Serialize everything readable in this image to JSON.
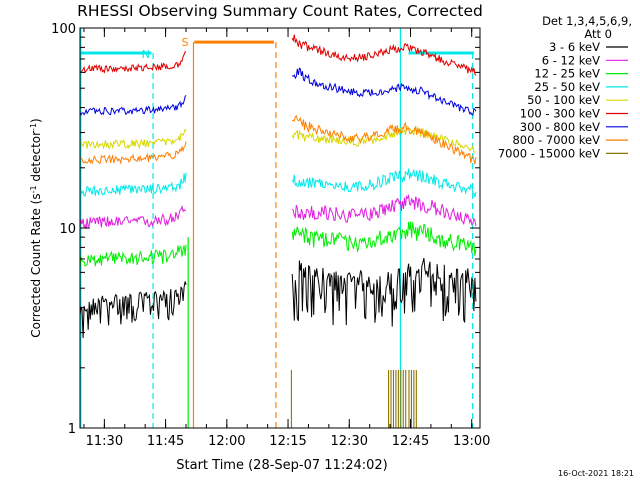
{
  "chart_data": {
    "type": "line",
    "title": "RHESSI Observing Summary Count Rates, Corrected",
    "xlabel": "Start Time (28-Sep-07 11:24:02)",
    "ylabel": "Corrected Count Rate (s⁻¹ detector⁻¹)",
    "ylabel_parts": {
      "pre": "Corrected Count Rate (s",
      "sup1": "-1",
      "mid": " detector",
      "sup2": "-1",
      "post": ")"
    },
    "x_axis_unit": "minutes after 11:24:02",
    "xlim": [
      0,
      98
    ],
    "ylim": [
      1,
      100
    ],
    "yscale": "log",
    "x_ticks": [
      {
        "value": 5.97,
        "label": "11:30"
      },
      {
        "value": 20.97,
        "label": "11:45"
      },
      {
        "value": 35.97,
        "label": "12:00"
      },
      {
        "value": 50.97,
        "label": "12:15"
      },
      {
        "value": 65.97,
        "label": "12:30"
      },
      {
        "value": 80.97,
        "label": "12:45"
      },
      {
        "value": 95.97,
        "label": "13:00"
      }
    ],
    "y_ticks": [
      {
        "value": 1,
        "label": "1"
      },
      {
        "value": 10,
        "label": "10"
      },
      {
        "value": 100,
        "label": "100"
      }
    ],
    "legend": {
      "placement": "right",
      "header1": "Det 1,3,4,5,6,9,",
      "header2": "Att 0"
    },
    "series": [
      {
        "name": "3 - 6 keV",
        "color": "#000000",
        "x": [
          0,
          4,
          8,
          12,
          16,
          20,
          24,
          26,
          52,
          56,
          60,
          64,
          68,
          72,
          76,
          80,
          84,
          88,
          92,
          97
        ],
        "y": [
          3.5,
          4.2,
          4.3,
          4.3,
          4.4,
          4.5,
          4.7,
          5.0,
          5.4,
          5.6,
          5.4,
          5.2,
          5.3,
          5.2,
          5.1,
          5.5,
          5.8,
          5.6,
          5.4,
          5.2
        ],
        "lo": [
          2.6,
          3.2,
          3.2,
          3.3,
          3.3,
          3.4,
          3.5,
          3.6,
          3.3,
          3.4,
          3.3,
          3.2,
          3.3,
          3.2,
          3.1,
          3.4,
          3.5,
          3.4,
          3.3,
          3.0
        ],
        "hi": [
          4.0,
          4.6,
          4.7,
          4.7,
          4.8,
          4.9,
          5.0,
          5.5,
          7.2,
          6.5,
          6.4,
          6.0,
          6.2,
          6.0,
          6.1,
          6.6,
          7.2,
          6.8,
          6.4,
          6.2
        ]
      },
      {
        "name": "6 - 12 keV",
        "color": "#e020e0",
        "x": [
          0,
          4,
          8,
          12,
          16,
          20,
          24,
          26,
          52,
          56,
          60,
          64,
          68,
          72,
          76,
          80,
          84,
          88,
          92,
          97
        ],
        "y": [
          10.5,
          10.7,
          10.8,
          10.7,
          10.8,
          11.0,
          11.4,
          12.5,
          12.4,
          11.8,
          11.8,
          11.6,
          11.4,
          12.0,
          12.8,
          13.6,
          13.2,
          12.3,
          11.5,
          10.6
        ],
        "lo": [
          9.8,
          10.0,
          10.0,
          10.0,
          10.0,
          10.2,
          10.6,
          11.0,
          11.0,
          10.8,
          10.8,
          10.6,
          10.5,
          11.0,
          11.7,
          12.3,
          12.0,
          11.2,
          10.6,
          9.9
        ],
        "hi": [
          11.2,
          11.4,
          11.5,
          11.4,
          11.5,
          11.7,
          12.2,
          13.6,
          14.0,
          13.0,
          13.0,
          12.7,
          12.4,
          13.0,
          13.9,
          14.8,
          14.4,
          13.4,
          12.5,
          11.4
        ]
      },
      {
        "name": "12 - 25 keV",
        "color": "#00ee00",
        "x": [
          0,
          4,
          8,
          12,
          16,
          20,
          24,
          26,
          52,
          56,
          60,
          64,
          68,
          72,
          76,
          80,
          84,
          88,
          92,
          97
        ],
        "y": [
          6.8,
          7.0,
          7.1,
          7.1,
          7.2,
          7.3,
          7.6,
          8.2,
          9.5,
          8.9,
          8.8,
          8.6,
          8.4,
          8.7,
          9.3,
          9.8,
          9.5,
          8.9,
          8.4,
          7.9
        ],
        "lo": [
          6.3,
          6.4,
          6.5,
          6.5,
          6.5,
          6.6,
          6.9,
          7.2,
          8.3,
          7.9,
          7.9,
          7.7,
          7.6,
          7.9,
          8.3,
          8.8,
          8.5,
          8.0,
          7.6,
          7.2
        ],
        "hi": [
          7.3,
          7.5,
          7.6,
          7.6,
          7.7,
          7.8,
          8.2,
          9.0,
          10.8,
          9.9,
          9.7,
          9.5,
          9.3,
          9.6,
          10.2,
          10.9,
          10.5,
          9.8,
          9.3,
          8.7
        ]
      },
      {
        "name": "25 - 50 keV",
        "color": "#00e8e8",
        "x": [
          0,
          4,
          8,
          12,
          16,
          20,
          24,
          26,
          52,
          56,
          60,
          64,
          68,
          72,
          76,
          80,
          84,
          88,
          92,
          97
        ],
        "y": [
          15.2,
          15.4,
          15.5,
          15.5,
          15.6,
          15.8,
          16.2,
          18.0,
          17.6,
          16.8,
          16.6,
          16.2,
          16.0,
          16.6,
          17.6,
          18.6,
          18.1,
          17.0,
          16.2,
          15.2
        ],
        "lo": [
          14.3,
          14.5,
          14.6,
          14.6,
          14.7,
          14.9,
          15.2,
          16.6,
          16.2,
          15.6,
          15.5,
          15.2,
          15.0,
          15.5,
          16.3,
          17.3,
          16.8,
          15.9,
          15.1,
          14.2
        ],
        "hi": [
          16.1,
          16.3,
          16.4,
          16.4,
          16.5,
          16.7,
          17.2,
          19.4,
          19.0,
          17.9,
          17.7,
          17.3,
          17.0,
          17.7,
          18.9,
          19.9,
          19.4,
          18.2,
          17.3,
          16.2
        ]
      },
      {
        "name": "50 - 100 keV",
        "color": "#d8d800",
        "x": [
          0,
          4,
          8,
          12,
          16,
          20,
          24,
          26,
          52,
          56,
          60,
          64,
          68,
          72,
          76,
          80,
          84,
          88,
          92,
          97
        ],
        "y": [
          26.0,
          26.2,
          26.3,
          26.3,
          26.5,
          26.8,
          27.5,
          31.0,
          29.5,
          28.3,
          27.8,
          27.2,
          26.8,
          27.8,
          29.5,
          30.8,
          30.0,
          28.0,
          26.5,
          24.5
        ],
        "lo": [
          24.8,
          25.0,
          25.1,
          25.1,
          25.3,
          25.6,
          26.3,
          28.8,
          27.8,
          26.8,
          26.4,
          25.9,
          25.5,
          26.4,
          28.0,
          29.2,
          28.4,
          26.6,
          25.2,
          23.3
        ],
        "hi": [
          27.2,
          27.4,
          27.5,
          27.5,
          27.7,
          28.0,
          28.8,
          33.0,
          31.2,
          29.8,
          29.2,
          28.5,
          28.1,
          29.2,
          31.0,
          32.4,
          31.6,
          29.4,
          27.8,
          25.7
        ]
      },
      {
        "name": "100 - 300 keV",
        "color": "#e00000",
        "x": [
          0,
          4,
          8,
          12,
          16,
          20,
          24,
          26,
          52,
          56,
          60,
          64,
          68,
          72,
          76,
          80,
          84,
          88,
          92,
          97
        ],
        "y": [
          62.0,
          62.5,
          62.8,
          62.8,
          63.2,
          64.0,
          66.0,
          76.0,
          88.0,
          80.0,
          76.0,
          72.0,
          71.0,
          73.0,
          78.0,
          80.0,
          76.0,
          70.0,
          65.0,
          60.0
        ],
        "lo": [
          59.5,
          60.0,
          60.2,
          60.2,
          60.6,
          61.4,
          63.3,
          70.0,
          82.0,
          76.0,
          72.5,
          68.8,
          67.8,
          69.8,
          74.5,
          76.5,
          72.5,
          66.8,
          62.0,
          57.5
        ],
        "hi": [
          64.5,
          65.0,
          65.3,
          65.3,
          65.8,
          66.6,
          68.8,
          80.0,
          94.0,
          84.0,
          79.5,
          75.2,
          74.2,
          76.3,
          81.5,
          83.5,
          79.5,
          73.2,
          68.0,
          62.5
        ]
      },
      {
        "name": "300 - 800 keV",
        "color": "#0000e0",
        "x": [
          0,
          4,
          8,
          12,
          16,
          20,
          24,
          26,
          52,
          56,
          60,
          64,
          68,
          72,
          76,
          80,
          84,
          88,
          92,
          97
        ],
        "y": [
          38.0,
          38.3,
          38.5,
          38.5,
          38.8,
          39.2,
          40.2,
          45.0,
          62.0,
          55.0,
          52.0,
          49.0,
          47.5,
          47.8,
          49.5,
          50.5,
          48.0,
          43.5,
          40.5,
          37.5
        ],
        "lo": [
          36.4,
          36.7,
          36.9,
          36.9,
          37.2,
          37.6,
          38.5,
          42.5,
          57.0,
          52.0,
          49.4,
          46.6,
          45.2,
          45.5,
          47.1,
          48.0,
          45.7,
          41.4,
          38.6,
          35.8
        ],
        "hi": [
          39.6,
          39.9,
          40.1,
          40.1,
          40.4,
          40.8,
          41.9,
          47.5,
          67.0,
          58.0,
          54.6,
          51.4,
          49.8,
          50.1,
          51.9,
          53.0,
          50.3,
          45.6,
          42.4,
          39.2
        ]
      },
      {
        "name": "800 - 7000 keV",
        "color": "#ff7f00",
        "x": [
          0,
          4,
          8,
          12,
          16,
          20,
          24,
          26,
          52,
          56,
          60,
          64,
          68,
          72,
          76,
          80,
          84,
          88,
          92,
          97
        ],
        "y": [
          21.8,
          22.0,
          22.1,
          22.1,
          22.3,
          22.6,
          23.4,
          26.0,
          36.0,
          32.0,
          30.5,
          29.0,
          28.0,
          29.0,
          31.0,
          31.8,
          30.0,
          27.0,
          24.5,
          21.5
        ],
        "lo": [
          20.8,
          21.0,
          21.1,
          21.1,
          21.3,
          21.6,
          22.3,
          24.5,
          33.5,
          30.0,
          28.8,
          27.4,
          26.4,
          27.4,
          29.2,
          30.0,
          28.3,
          25.5,
          23.2,
          20.4
        ],
        "hi": [
          22.8,
          23.0,
          23.1,
          23.1,
          23.3,
          23.6,
          24.5,
          27.5,
          38.5,
          34.0,
          32.2,
          30.6,
          29.6,
          30.6,
          32.8,
          33.6,
          31.7,
          28.5,
          25.8,
          22.6
        ]
      },
      {
        "name": "7000 - 15000 keV",
        "color": "#8b7700",
        "x": [
          52,
          53,
          72,
          73,
          74,
          75,
          76,
          77,
          78,
          79,
          80,
          81,
          82,
          83,
          84
        ],
        "y": [
          1,
          1,
          1,
          1,
          1,
          1,
          1,
          1,
          1,
          1,
          1,
          1,
          1,
          1,
          1
        ],
        "spikes": [
          {
            "x": 51.8,
            "top": 1.95
          },
          {
            "x": 75.6,
            "top": 1.95
          },
          {
            "x": 76.2,
            "top": 1.95
          },
          {
            "x": 76.8,
            "top": 1.95
          },
          {
            "x": 77.4,
            "top": 1.95
          },
          {
            "x": 78.0,
            "top": 1.95
          },
          {
            "x": 78.6,
            "top": 1.95
          },
          {
            "x": 79.2,
            "top": 1.95
          },
          {
            "x": 79.8,
            "top": 1.95
          },
          {
            "x": 80.6,
            "top": 1.95
          },
          {
            "x": 81.2,
            "top": 1.95
          },
          {
            "x": 81.8,
            "top": 1.95
          },
          {
            "x": 82.4,
            "top": 1.95
          }
        ]
      }
    ],
    "annotations": {
      "N_label": "N",
      "S_label": "S",
      "night_bars": [
        {
          "x0": 0,
          "x1": 17.5,
          "y": 75
        },
        {
          "x0": 80.5,
          "x1": 96.5,
          "y": 75
        }
      ],
      "saa_bar": {
        "x0": 28,
        "x1": 47.5,
        "y": 85
      },
      "vlines": [
        {
          "x": 0.2,
          "color": "#00e8e8",
          "style": "solid",
          "y0": 1,
          "y1": 100
        },
        {
          "x": 17.9,
          "color": "#00e8e8",
          "style": "dashed",
          "y0": 1,
          "y1": 75
        },
        {
          "x": 26.5,
          "color": "#00ee00",
          "style": "solid",
          "y0": 1,
          "y1": 9
        },
        {
          "x": 27.8,
          "color": "#ff7f00",
          "style": "solid",
          "y0": 1,
          "y1": 85
        },
        {
          "x": 48.0,
          "color": "#ff7f00",
          "style": "dashed",
          "y0": 1,
          "y1": 85
        },
        {
          "x": 78.5,
          "color": "#00e8e8",
          "style": "solid",
          "y0": 1,
          "y1": 100
        },
        {
          "x": 96.2,
          "color": "#00e8e8",
          "style": "dashed",
          "y0": 1,
          "y1": 75
        }
      ]
    },
    "footer_stamp": "16-Oct-2021 18:21"
  }
}
